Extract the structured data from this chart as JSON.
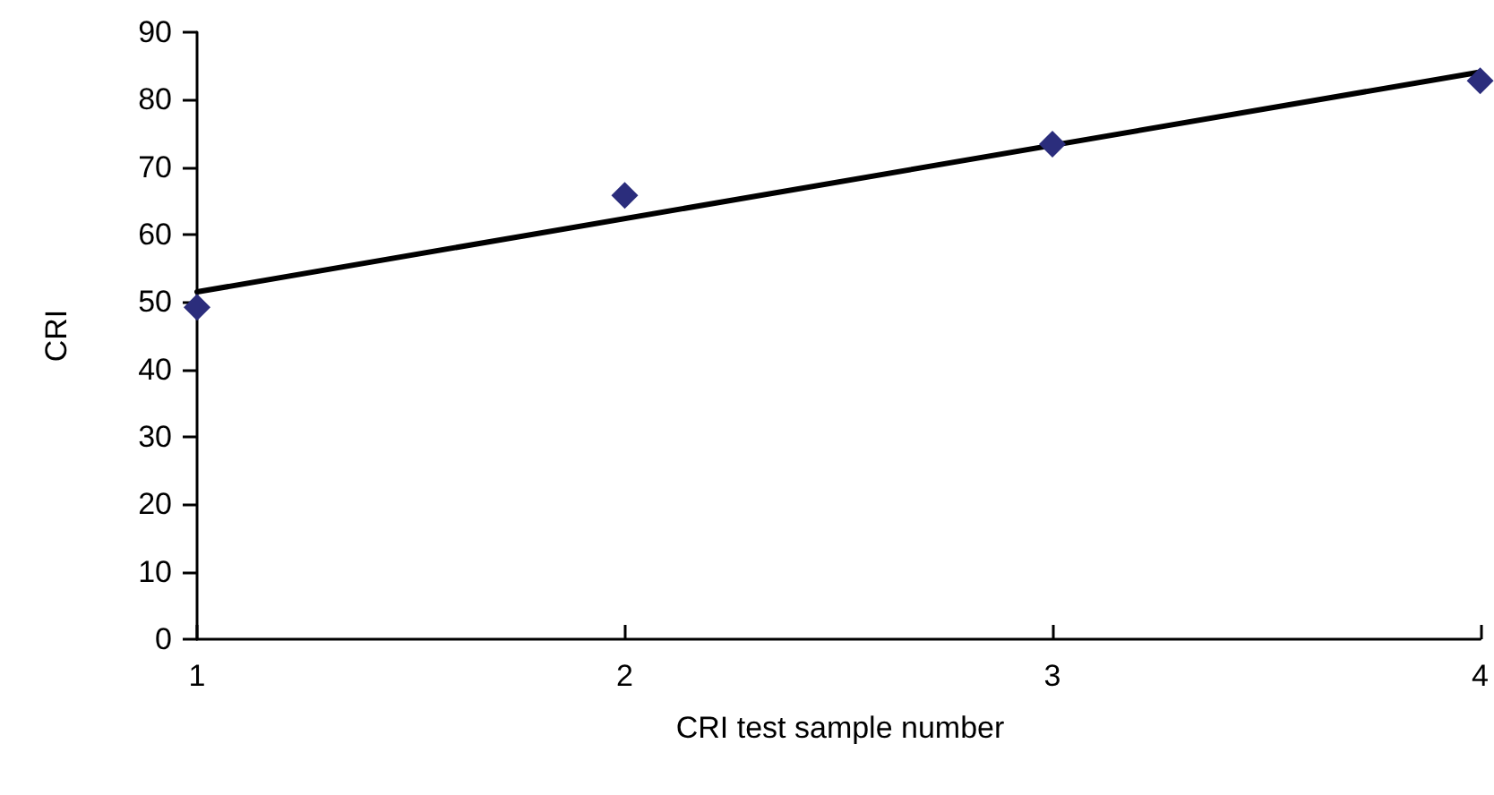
{
  "chart_data": {
    "type": "scatter",
    "xlabel": "CRI test sample number",
    "ylabel": "CRI",
    "xlim": [
      1,
      4
    ],
    "xticks": [
      1,
      2,
      3,
      4
    ],
    "ylim": [
      0,
      90
    ],
    "yticks": [
      0,
      10,
      20,
      30,
      40,
      50,
      60,
      70,
      80,
      90
    ],
    "grid": false,
    "series": [
      {
        "marker": "diamond",
        "color": "#2b2d7c",
        "x": [
          1,
          2,
          3,
          4
        ],
        "values": [
          49.2,
          65.8,
          73.4,
          82.8
        ]
      },
      {
        "type": "line",
        "marker": "none",
        "color": "#000000",
        "x": [
          1,
          4
        ],
        "values": [
          51.5,
          84.1
        ]
      }
    ]
  }
}
